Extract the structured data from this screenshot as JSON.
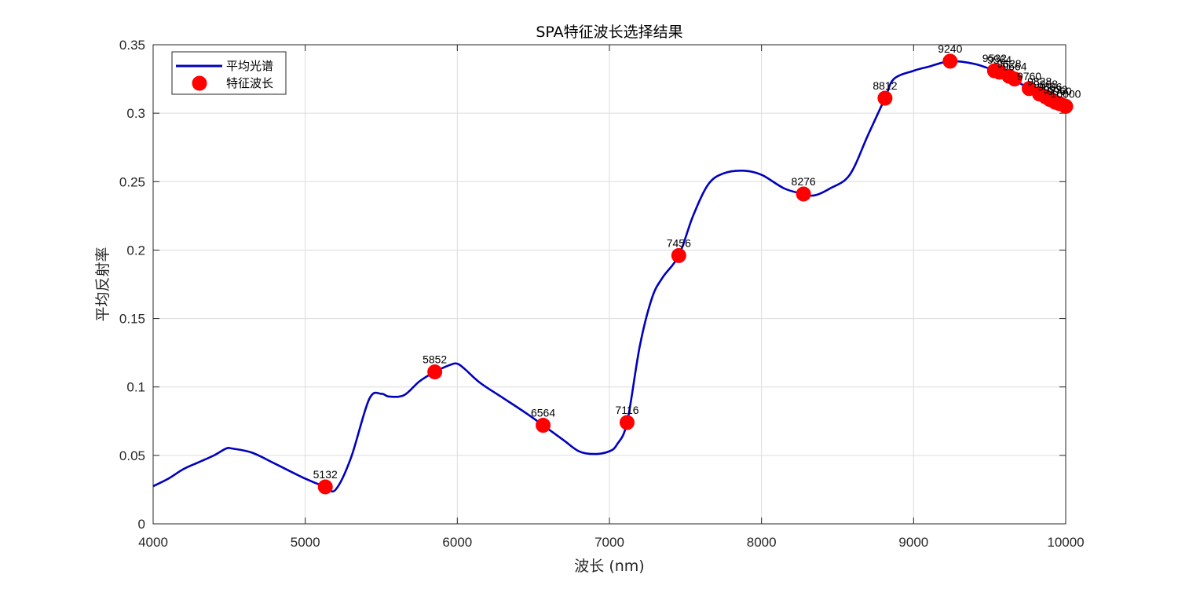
{
  "chart_data": {
    "type": "line",
    "title": "SPA特征波长选择结果",
    "xlabel": "波长 (nm)",
    "ylabel": "平均反射率",
    "xlim": [
      4000,
      10000
    ],
    "ylim": [
      0,
      0.35
    ],
    "xticks": [
      4000,
      5000,
      6000,
      7000,
      8000,
      9000,
      10000
    ],
    "xtick_labels": [
      "4000",
      "5000",
      "6000",
      "7000",
      "8000",
      "9000",
      "10000"
    ],
    "yticks": [
      0,
      0.05,
      0.1,
      0.15,
      0.2,
      0.25,
      0.3,
      0.35
    ],
    "ytick_labels": [
      "0",
      "0.05",
      "0.1",
      "0.15",
      "0.2",
      "0.25",
      "0.3",
      "0.35"
    ],
    "grid": true,
    "legend": {
      "position": "top-left",
      "entries": [
        "平均光谱",
        "特征波长"
      ]
    },
    "series": [
      {
        "name": "平均光谱",
        "kind": "line",
        "color": "#0000c0",
        "x": [
          4000,
          4100,
          4200,
          4300,
          4400,
          4480,
          4520,
          4650,
          4800,
          5000,
          5132,
          5200,
          5300,
          5420,
          5500,
          5550,
          5650,
          5750,
          5852,
          5950,
          6000,
          6050,
          6150,
          6300,
          6450,
          6564,
          6700,
          6800,
          6900,
          7000,
          7050,
          7116,
          7200,
          7280,
          7350,
          7456,
          7550,
          7650,
          7750,
          7880,
          8000,
          8150,
          8276,
          8350,
          8450,
          8580,
          8700,
          8812,
          8870,
          9000,
          9100,
          9240,
          9400,
          9532,
          9650,
          9760,
          9850,
          9950,
          10000
        ],
        "y": [
          0.0275,
          0.033,
          0.04,
          0.045,
          0.05,
          0.055,
          0.055,
          0.052,
          0.044,
          0.033,
          0.027,
          0.025,
          0.048,
          0.091,
          0.095,
          0.093,
          0.094,
          0.104,
          0.111,
          0.116,
          0.117,
          0.113,
          0.103,
          0.092,
          0.081,
          0.072,
          0.061,
          0.053,
          0.051,
          0.053,
          0.058,
          0.074,
          0.13,
          0.165,
          0.18,
          0.196,
          0.225,
          0.248,
          0.256,
          0.258,
          0.255,
          0.245,
          0.241,
          0.24,
          0.245,
          0.255,
          0.284,
          0.311,
          0.325,
          0.331,
          0.334,
          0.338,
          0.336,
          0.331,
          0.325,
          0.318,
          0.314,
          0.309,
          0.305
        ]
      },
      {
        "name": "特征波长",
        "kind": "markers",
        "color": "#ff0000",
        "points": [
          {
            "x": 5132,
            "y": 0.027,
            "label": "5132"
          },
          {
            "x": 5852,
            "y": 0.111,
            "label": "5852"
          },
          {
            "x": 6564,
            "y": 0.072,
            "label": "6564"
          },
          {
            "x": 7116,
            "y": 0.074,
            "label": "7116"
          },
          {
            "x": 7456,
            "y": 0.196,
            "label": "7456"
          },
          {
            "x": 8276,
            "y": 0.241,
            "label": "8276"
          },
          {
            "x": 8812,
            "y": 0.311,
            "label": "8812"
          },
          {
            "x": 9240,
            "y": 0.338,
            "label": "9240"
          },
          {
            "x": 9532,
            "y": 0.331,
            "label": "9532"
          },
          {
            "x": 9564,
            "y": 0.33,
            "label": "9564"
          },
          {
            "x": 9628,
            "y": 0.327,
            "label": "9628"
          },
          {
            "x": 9664,
            "y": 0.325,
            "label": "9664"
          },
          {
            "x": 9760,
            "y": 0.318,
            "label": "9760"
          },
          {
            "x": 9828,
            "y": 0.314,
            "label": "9828"
          },
          {
            "x": 9868,
            "y": 0.312,
            "label": "9868"
          },
          {
            "x": 9896,
            "y": 0.31,
            "label": "9896"
          },
          {
            "x": 9932,
            "y": 0.308,
            "label": "9932"
          },
          {
            "x": 9960,
            "y": 0.307,
            "label": "9960"
          },
          {
            "x": 10000,
            "y": 0.305,
            "label": "10000"
          }
        ]
      }
    ]
  }
}
